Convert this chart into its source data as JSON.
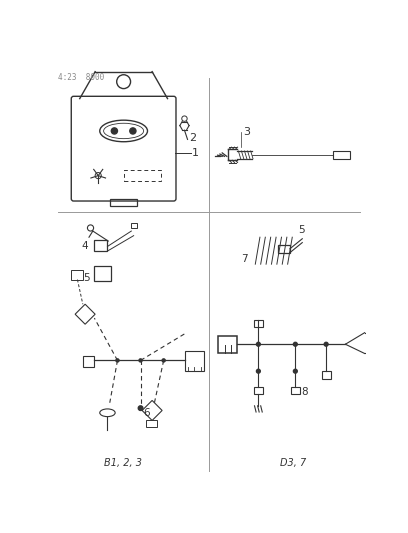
{
  "title": "4:23  8000",
  "background_color": "#ffffff",
  "line_color": "#333333",
  "label1": "1",
  "label2": "2",
  "label3": "3",
  "label4": "4",
  "label5": "5",
  "label6": "6",
  "label7": "7",
  "label8": "8",
  "caption_bl": "B1, 2, 3",
  "caption_br": "D3, 7",
  "fig_width": 4.08,
  "fig_height": 5.33,
  "dpi": 100
}
